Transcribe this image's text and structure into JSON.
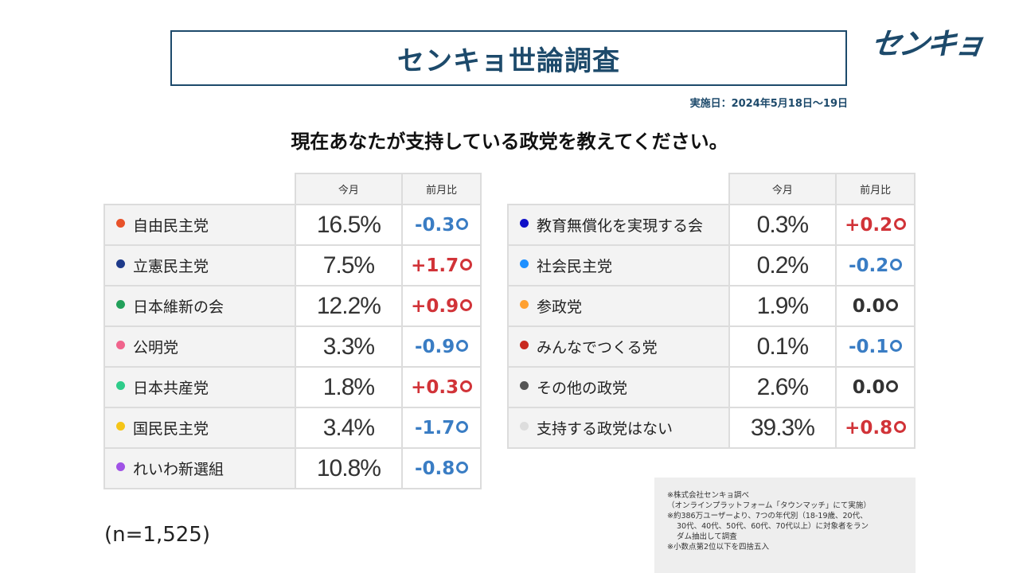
{
  "title": "センキョ世論調査",
  "logo_text": "センキョ",
  "survey_date": "実施日：2024年5月18日〜19日",
  "question": "現在あなたが支持している政党を教えてください。",
  "headers": {
    "current": "今月",
    "diff": "前月比"
  },
  "left_parties": [
    {
      "name": "自由民主党",
      "color": "#e8522a",
      "pct": "16.5%",
      "diff": "-0.3",
      "sign": "neg"
    },
    {
      "name": "立憲民主党",
      "color": "#1e3a8a",
      "pct": "7.5%",
      "diff": "+1.7",
      "sign": "pos"
    },
    {
      "name": "日本維新の会",
      "color": "#22a05a",
      "pct": "12.2%",
      "diff": "+0.9",
      "sign": "pos"
    },
    {
      "name": "公明党",
      "color": "#f0648c",
      "pct": "3.3%",
      "diff": "-0.9",
      "sign": "neg"
    },
    {
      "name": "日本共産党",
      "color": "#2ecc8a",
      "pct": "1.8%",
      "diff": "+0.3",
      "sign": "pos"
    },
    {
      "name": "国民民主党",
      "color": "#f5c518",
      "pct": "3.4%",
      "diff": "-1.7",
      "sign": "neg"
    },
    {
      "name": "れいわ新選組",
      "color": "#a052e6",
      "pct": "10.8%",
      "diff": "-0.8",
      "sign": "neg"
    }
  ],
  "right_parties": [
    {
      "name": "教育無償化を実現する会",
      "color": "#1010c8",
      "pct": "0.3%",
      "diff": "+0.2",
      "sign": "pos"
    },
    {
      "name": "社会民主党",
      "color": "#1e90ff",
      "pct": "0.2%",
      "diff": "-0.2",
      "sign": "neg"
    },
    {
      "name": "参政党",
      "color": "#ffa030",
      "pct": "1.9%",
      "diff": "0.0",
      "sign": "zero"
    },
    {
      "name": "みんなでつくる党",
      "color": "#c8281e",
      "pct": "0.1%",
      "diff": "-0.1",
      "sign": "neg"
    },
    {
      "name": "その他の政党",
      "color": "#555555",
      "pct": "2.6%",
      "diff": "0.0",
      "sign": "zero"
    },
    {
      "name": "支持する政党はない",
      "color": "#dddddd",
      "pct": "39.3%",
      "diff": "+0.8",
      "sign": "pos"
    }
  ],
  "sample_size": "(n=1,525)",
  "notes": [
    {
      "text": "※株式会社センキョ調べ",
      "indent": false
    },
    {
      "text": "（オンラインプラットフォーム「タウンマッチ」にて実施）",
      "indent": false
    },
    {
      "text": "※約386万ユーザーより、7つの年代別（18-19歳、20代、",
      "indent": false
    },
    {
      "text": "30代、40代、50代、60代、70代以上）に対象者をラン",
      "indent": true
    },
    {
      "text": "ダム抽出して調査",
      "indent": true
    },
    {
      "text": "※小数点第2位以下を四捨五入",
      "indent": false
    }
  ]
}
